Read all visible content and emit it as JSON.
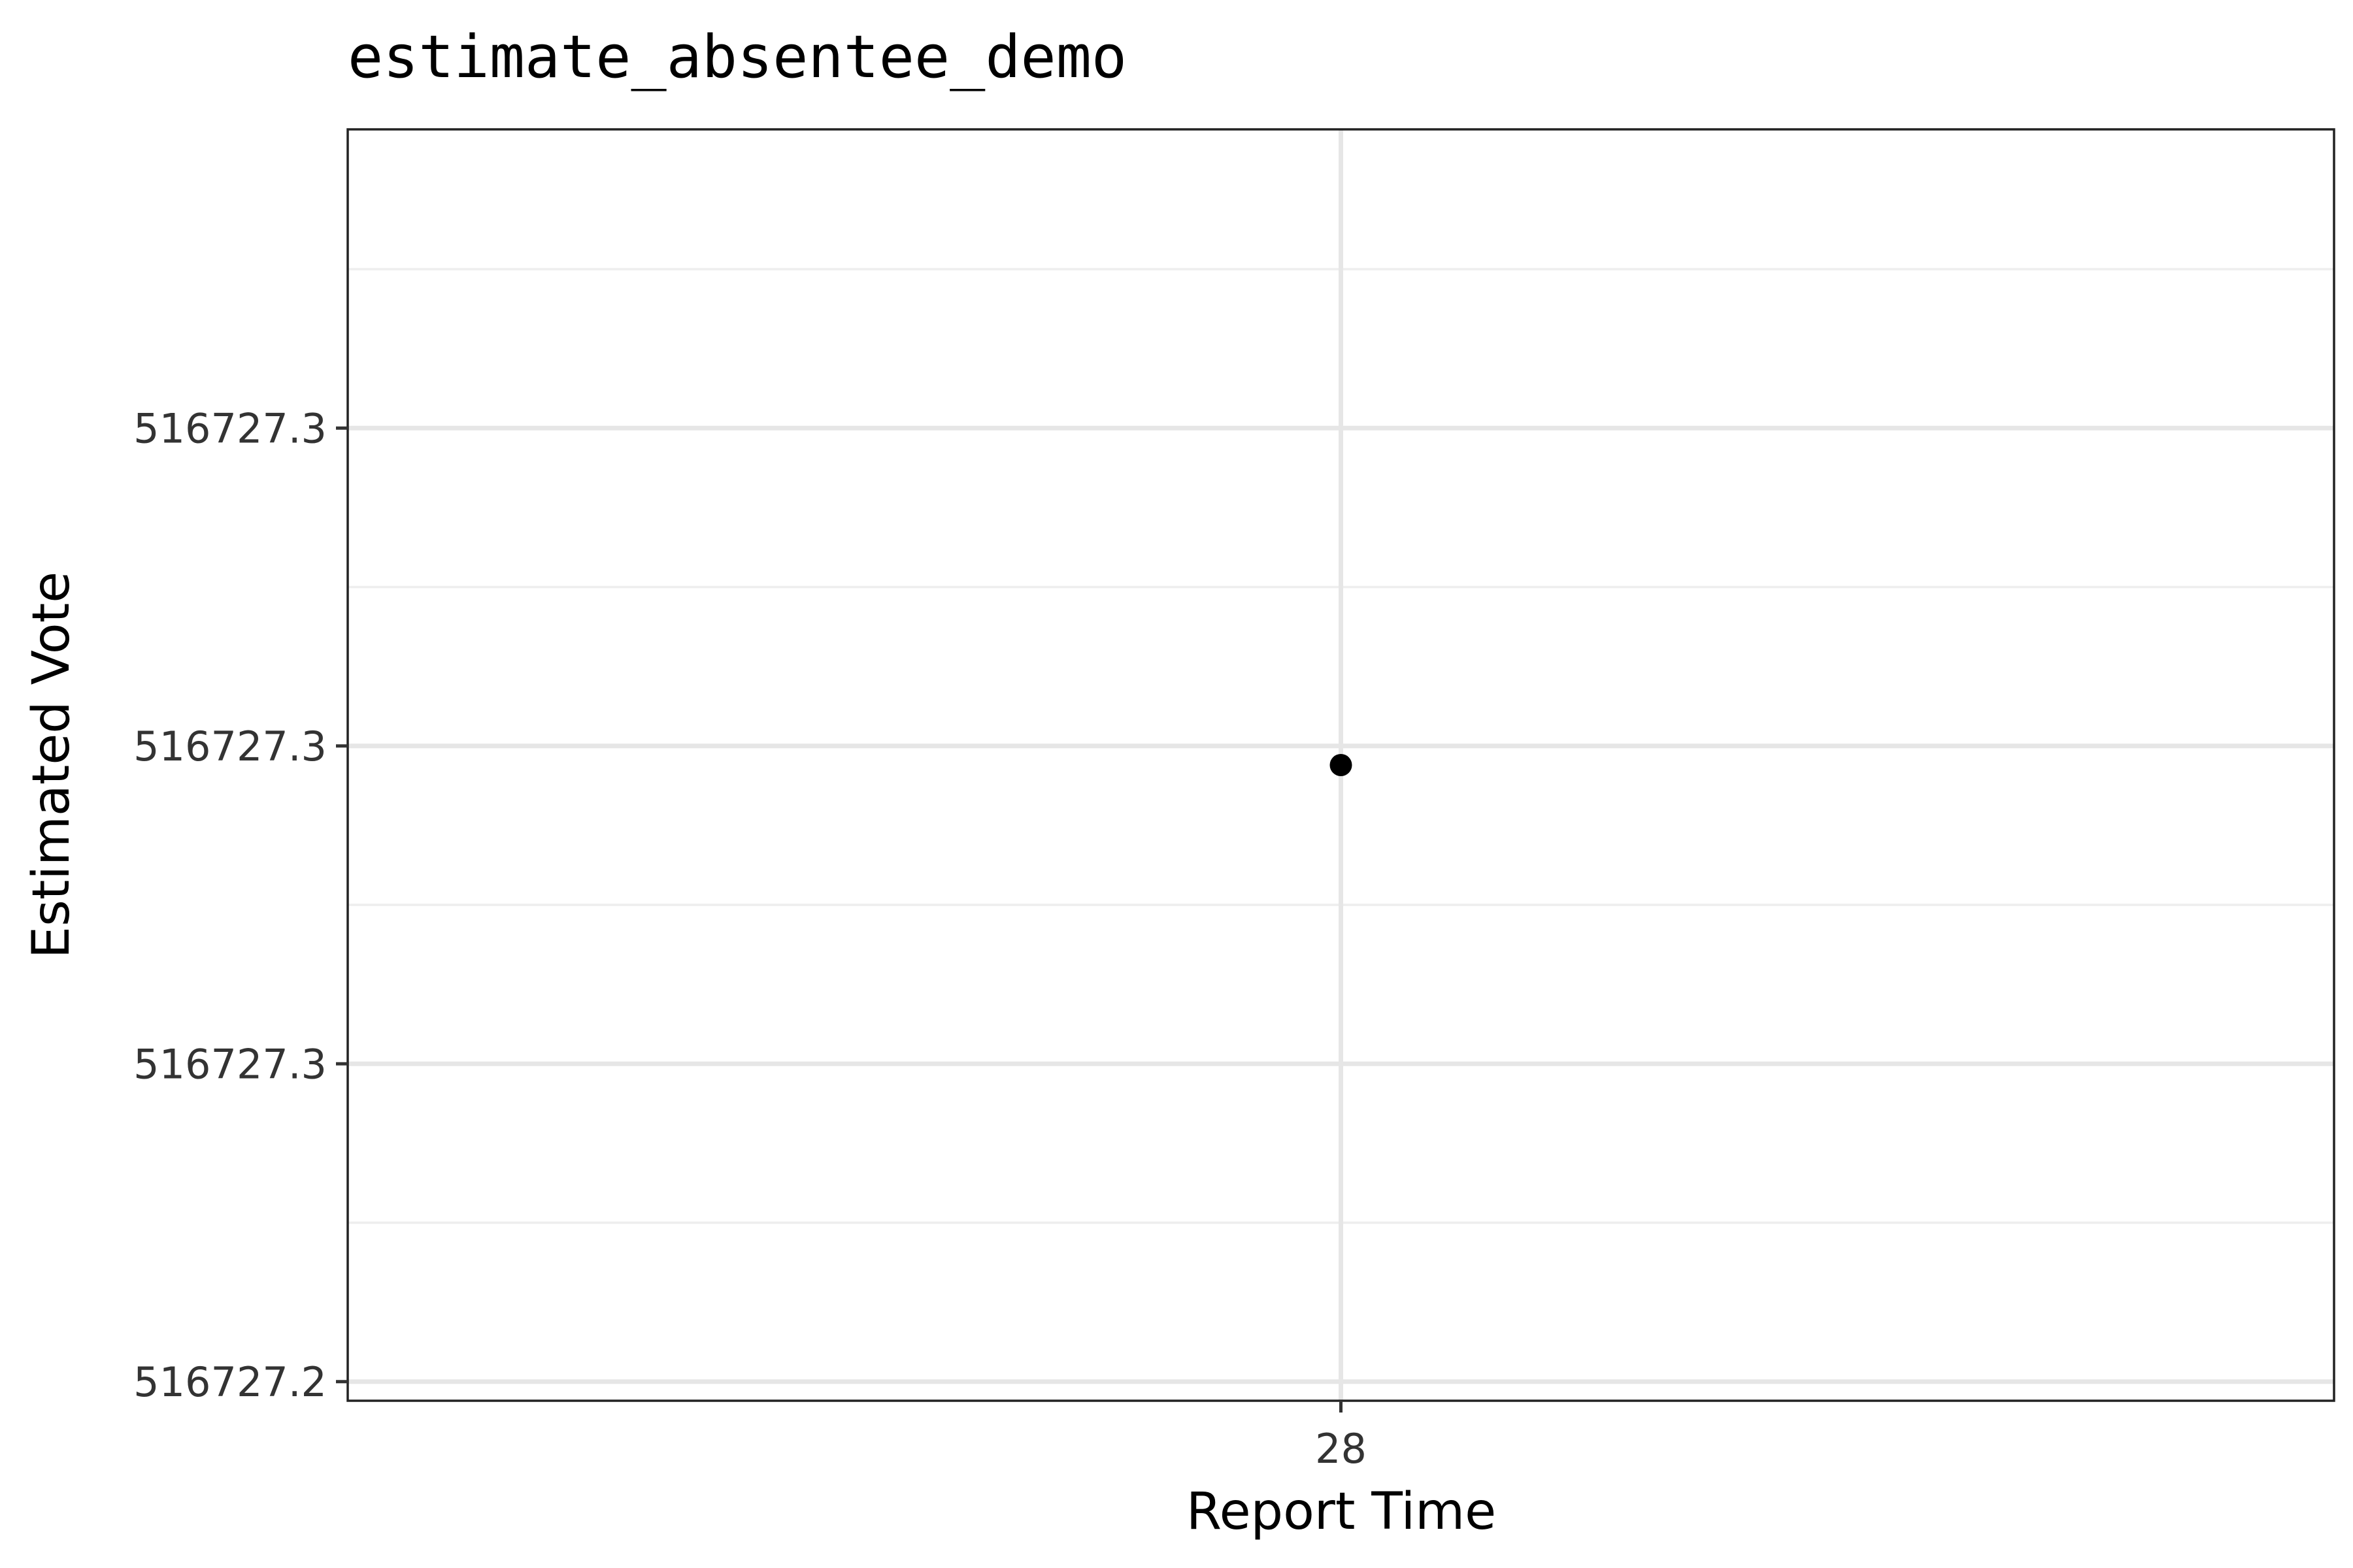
{
  "chart_data": {
    "type": "scatter",
    "title": "estimate_absentee_demo",
    "xlabel": "Report Time",
    "ylabel": "Estimated Vote",
    "x_categories": [
      "28"
    ],
    "y_ticks": [
      {
        "value": 516727.2,
        "label": "516727.2"
      },
      {
        "value": 516727.25,
        "label": "516727.3"
      },
      {
        "value": 516727.3,
        "label": "516727.3"
      },
      {
        "value": 516727.35,
        "label": "516727.3"
      }
    ],
    "y_minor": [
      516727.225,
      516727.275,
      516727.325,
      516727.375
    ],
    "ylim": [
      516727.197,
      516727.397
    ],
    "points": [
      {
        "x": "28",
        "y": 516727.297
      }
    ],
    "grid": true,
    "point_color": "#000000"
  }
}
